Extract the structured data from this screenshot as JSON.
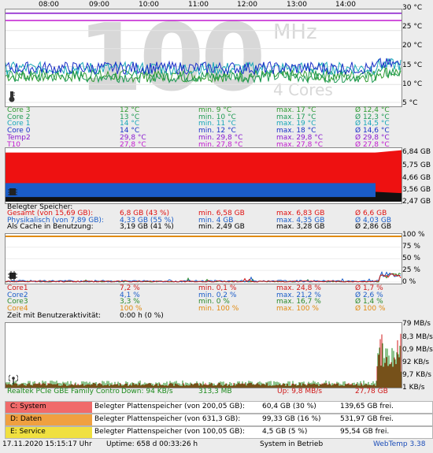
{
  "time_labels": [
    "08:00",
    "09:00",
    "10:00",
    "11:00",
    "12:00",
    "13:00",
    "14:00"
  ],
  "temp": {
    "axis": [
      "30 °C",
      "25 °C",
      "20 °C",
      "15 °C",
      "10 °C",
      "5 °C"
    ],
    "watermark_big": "100",
    "watermark_mhz": "MHz",
    "watermark_cores": "4 Cores",
    "icon": "thermometer-icon",
    "rows": [
      {
        "name": "Core 3",
        "cur": "12 °C",
        "min": "min. 9 °C",
        "max": "max. 17 °C",
        "avg": "Ø 12,4 °C",
        "color": "#2e9a2e"
      },
      {
        "name": "Core 2",
        "cur": "13 °C",
        "min": "min. 10 °C",
        "max": "max. 17 °C",
        "avg": "Ø 12,3 °C",
        "color": "#1e9a54"
      },
      {
        "name": "Core 1",
        "cur": "14 °C",
        "min": "min. 11 °C",
        "max": "max. 19 °C",
        "avg": "Ø 14,5 °C",
        "color": "#18a7b8"
      },
      {
        "name": "Core 0",
        "cur": "14 °C",
        "min": "min. 12 °C",
        "max": "max. 18 °C",
        "avg": "Ø 14,6 °C",
        "color": "#1a2fc8"
      },
      {
        "name": "Temp2",
        "cur": "29,8 °C",
        "min": "min. 29,8 °C",
        "max": "max. 29,8 °C",
        "avg": "Ø 29,8 °C",
        "color": "#8a1ad0"
      },
      {
        "name": "T10",
        "cur": "27,8 °C",
        "min": "min. 27,8 °C",
        "max": "max. 27,8 °C",
        "avg": "Ø 27,8 °C",
        "color": "#c21ad0"
      }
    ]
  },
  "memory": {
    "axis": [
      "6,84 GB",
      "5,75 GB",
      "4,66 GB",
      "3,56 GB",
      "2,47 GB"
    ],
    "icon": "memory-chip-icon",
    "heading": "Belegter Speicher:",
    "rows": [
      {
        "name": "Gesamt (von 15,69 GB):",
        "cur": "6,8 GB (43 %)",
        "min": "min. 6,58 GB",
        "max": "max. 6,83 GB",
        "avg": "Ø 6,6 GB",
        "color": "#e01010"
      },
      {
        "name": "Physikalisch (von 7,89 GB):",
        "cur": "4,33 GB (55 %)",
        "min": "min. 4 GB",
        "max": "max. 4,35 GB",
        "avg": "Ø 4,03 GB",
        "color": "#1a5cc8"
      },
      {
        "name": "Als Cache in Benutzung:",
        "cur": "3,19 GB (41 %)",
        "min": "min. 2,49 GB",
        "max": "max. 3,28 GB",
        "avg": "Ø 2,86 GB",
        "color": "#000000"
      }
    ]
  },
  "cpu": {
    "axis": [
      "100 %",
      "75 %",
      "50 %",
      "25 %",
      "0 %"
    ],
    "icon": "cpu-icon",
    "rows": [
      {
        "name": "Core1",
        "cur": "7,2 %",
        "min": "min. 0,1 %",
        "max": "max. 24,8 %",
        "avg": "Ø 1,7 %",
        "color": "#d01818"
      },
      {
        "name": "Core2",
        "cur": "4,1 %",
        "min": "min. 0,2 %",
        "max": "max. 21,2 %",
        "avg": "Ø 2,6 %",
        "color": "#1a5cc8"
      },
      {
        "name": "Core3",
        "cur": "3,3 %",
        "min": "min. 0 %",
        "max": "max. 16,7 %",
        "avg": "Ø 1,4 %",
        "color": "#2a8a2a"
      },
      {
        "name": "Core4",
        "cur": "100 %",
        "min": "min. 100 %",
        "max": "max. 100 %",
        "avg": "Ø 100 %",
        "color": "#e08a10"
      }
    ],
    "idle_label": "Zeit mit Benutzeraktivität:",
    "idle_value": "0:00 h  (0 %)"
  },
  "net": {
    "axis": [
      "79 MB/s",
      "8,3 MB/s",
      "0,9 MB/s",
      "92 KB/s",
      "9,7 KB/s",
      "1 KB/s"
    ],
    "icon": "antenna-icon",
    "adapter": "Realtek PCIe GBE Family Contro",
    "down": "Down: 94 KB/s",
    "down_total": "313,3 MB",
    "up": "Up: 9,8 MB/s",
    "up_total": "27,78 GB"
  },
  "drives": [
    {
      "tag": "C: System",
      "color": "#f06a6a",
      "label": "Belegter Plattenspeicher (von 200,05 GB):",
      "used": "60,4 GB (30 %)",
      "free": "139,65 GB frei."
    },
    {
      "tag": "D: Daten",
      "color": "#f0a040",
      "label": "Belegter Plattenspeicher (von 631,3 GB):",
      "used": "99,33 GB (16 %)",
      "free": "531,97 GB frei."
    },
    {
      "tag": "E: Service",
      "color": "#f0e040",
      "label": "Belegter Plattenspeicher (von 100,05 GB):",
      "used": "4,5 GB (5 %)",
      "free": "95,54 GB frei."
    }
  ],
  "status": {
    "datetime": "17.11.2020 15:15:17 Uhr",
    "uptime": "Uptime: 658 d 00:33:26 h",
    "state": "System in Betrieb",
    "app": "WebTemp 3.38"
  }
}
